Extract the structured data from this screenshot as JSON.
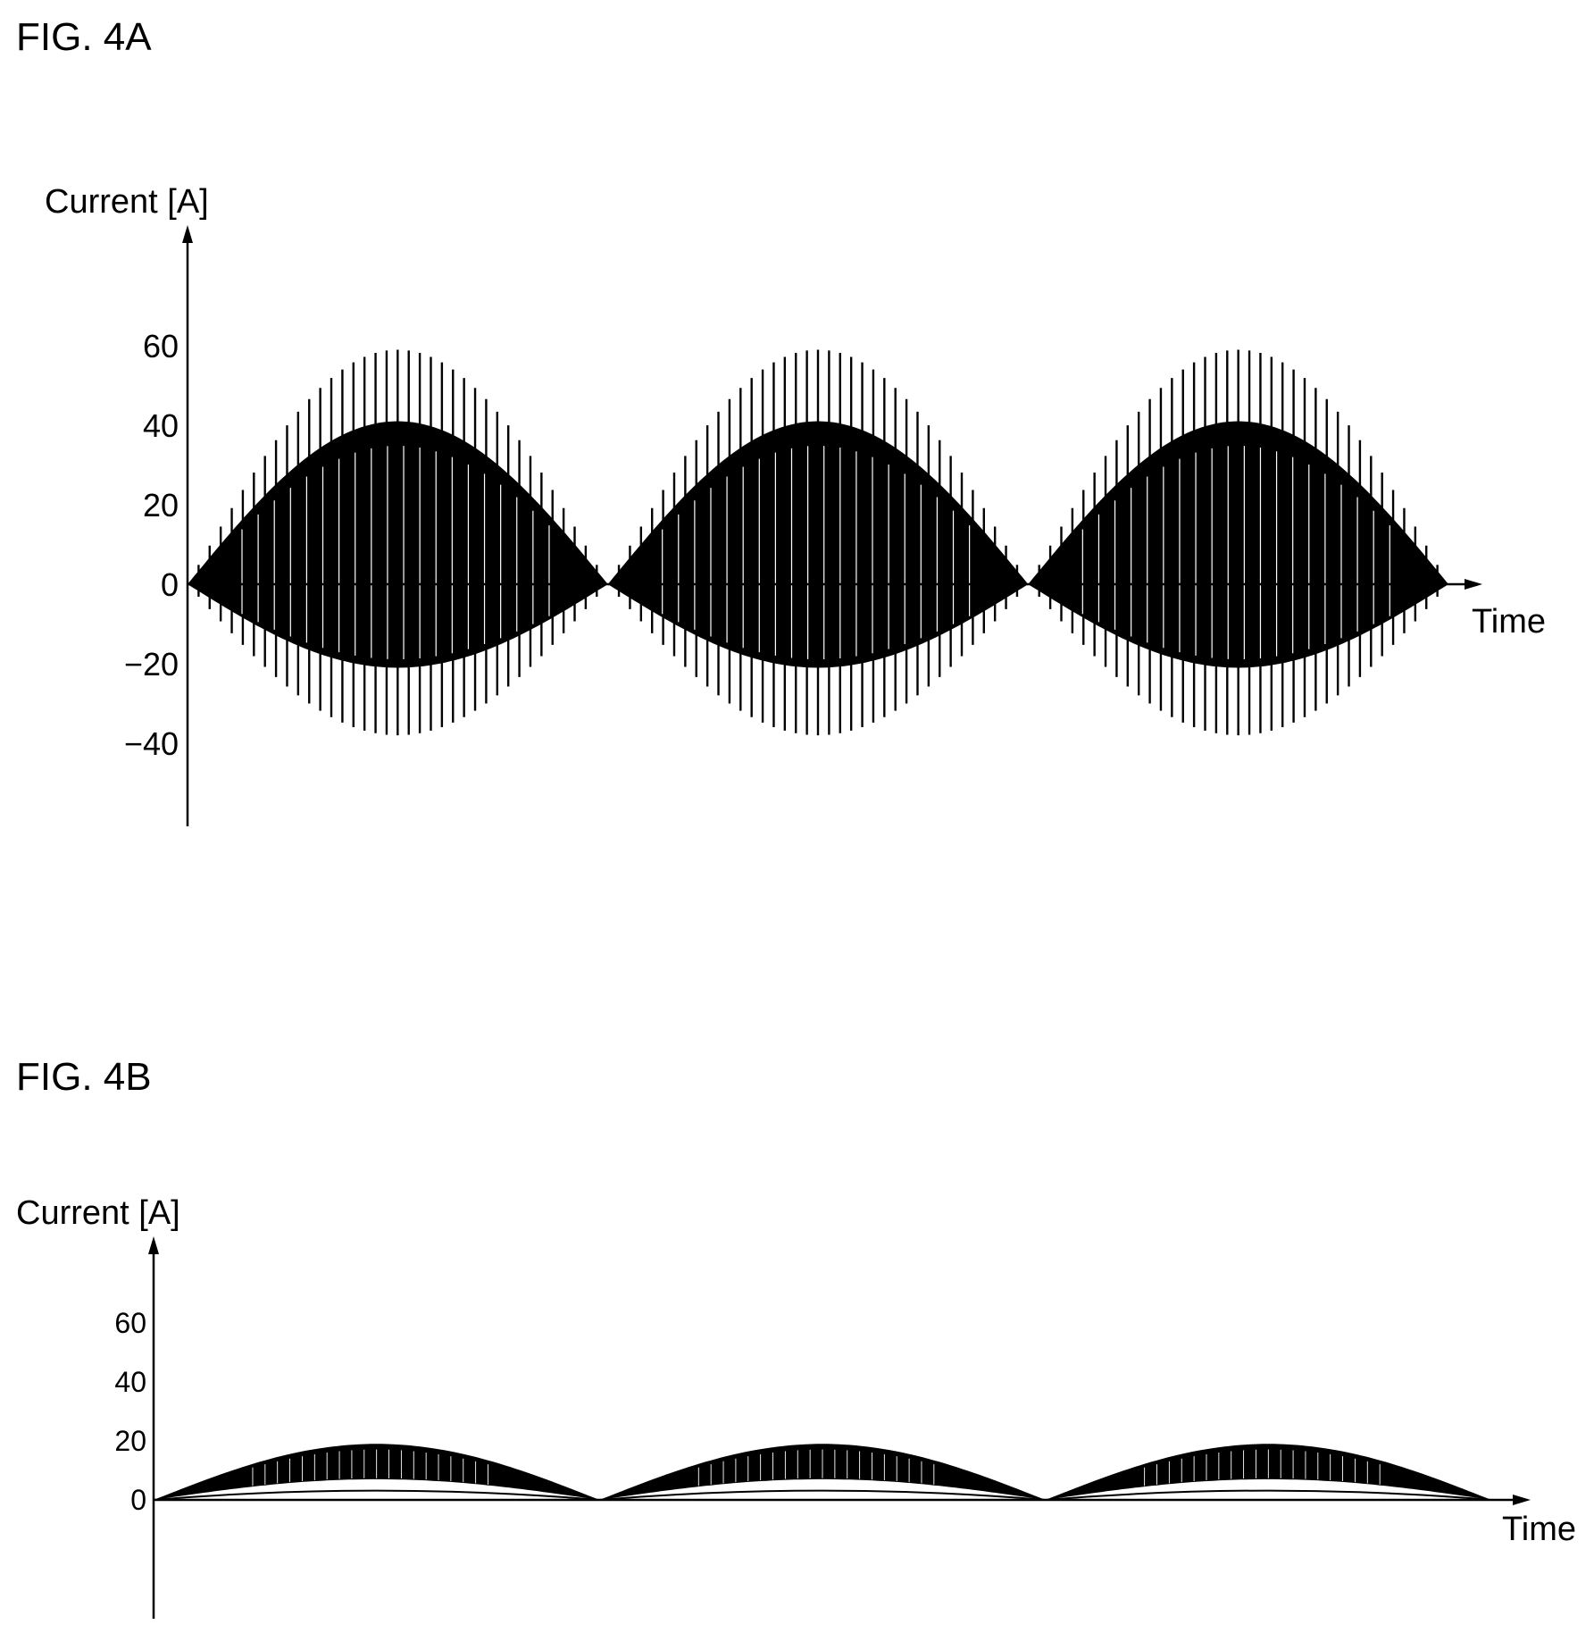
{
  "chart_data": [
    {
      "type": "line",
      "figure_label": "FIG. 4A",
      "ylabel": "Current [A]",
      "xlabel": "Time",
      "ylim": [
        -50,
        70
      ],
      "yticks": [
        60,
        40,
        20,
        0,
        -20,
        -40
      ],
      "ytick_labels": [
        "60",
        "40",
        "20",
        "0",
        "−20",
        "−40"
      ],
      "grid": false,
      "series": [
        {
          "description_values": "dense switching waveform inside a rectified-sine envelope, three humps",
          "humps": 3,
          "envelope_upper_peak": 41,
          "envelope_lower_peak": -21,
          "spike_upper_peak": 59,
          "spike_lower_peak": -38,
          "color": "#000000"
        }
      ]
    },
    {
      "type": "line",
      "figure_label": "FIG. 4B",
      "ylabel": "Current [A]",
      "xlabel": "Time",
      "ylim": [
        -30,
        72
      ],
      "yticks": [
        60,
        40,
        20,
        0
      ],
      "ytick_labels": [
        "60",
        "40",
        "20",
        "0"
      ],
      "grid": false,
      "series": [
        {
          "humps": 3,
          "envelope_upper_peak": 19,
          "envelope_lower_peak": 7,
          "color": "#000000"
        }
      ]
    }
  ]
}
